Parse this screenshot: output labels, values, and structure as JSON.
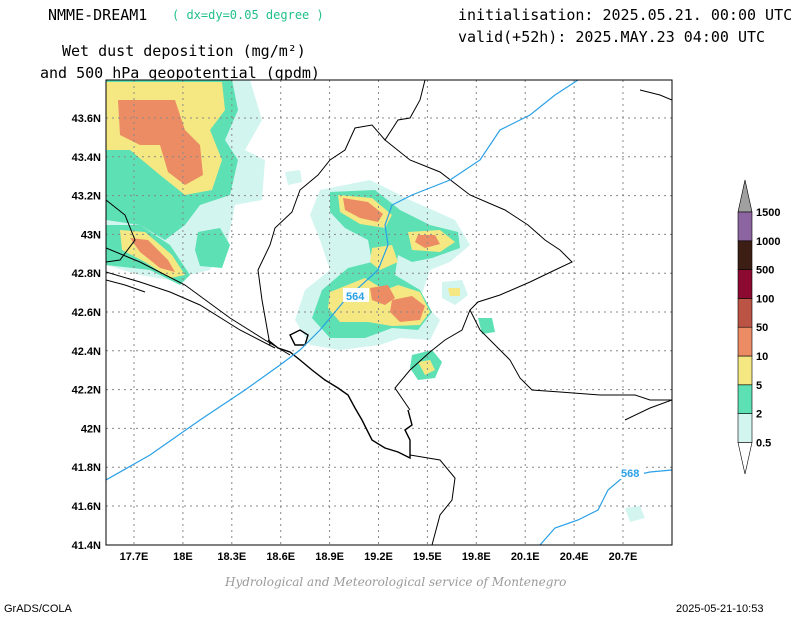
{
  "header": {
    "model": "NMME-DREAM1",
    "resolution": "( dx=dy=0.05 degree )",
    "init": "initialisation: 2025.05.21. 00:00 UTC",
    "valid": "valid(+52h): 2025.MAY.23 04:00 UTC",
    "variable_line1": "Wet dust deposition (mg/m²)",
    "variable_line2": "and 500 hPa geopotential (gpdm)"
  },
  "footer": {
    "credit": "Hydrological and Meteorological service of Montenegro",
    "software": "GrADS/COLA",
    "timestamp": "2025-05-21-10:53"
  },
  "map": {
    "lon_ticks": [
      "17.7E",
      "18E",
      "18.3E",
      "18.6E",
      "18.9E",
      "19.2E",
      "19.5E",
      "19.8E",
      "20.1E",
      "20.4E",
      "20.7E"
    ],
    "lat_ticks": [
      "43.6N",
      "43.4N",
      "43.2N",
      "43N",
      "42.8N",
      "42.6N",
      "42.4N",
      "42.2N",
      "42N",
      "41.8N",
      "41.6N",
      "41.4N"
    ],
    "contour_labels": [
      "564",
      "568"
    ],
    "contour_color": "#2aa0e6"
  },
  "legend": {
    "levels": [
      "0.5",
      "2",
      "5",
      "10",
      "50",
      "100",
      "500",
      "1000",
      "1500"
    ],
    "colors": [
      "#d2f5f0",
      "#5ce0b4",
      "#f5e882",
      "#ec8c64",
      "#bc5446",
      "#8c0a32",
      "#3c1e14",
      "#8c64a0",
      "#a0a0a0"
    ]
  }
}
